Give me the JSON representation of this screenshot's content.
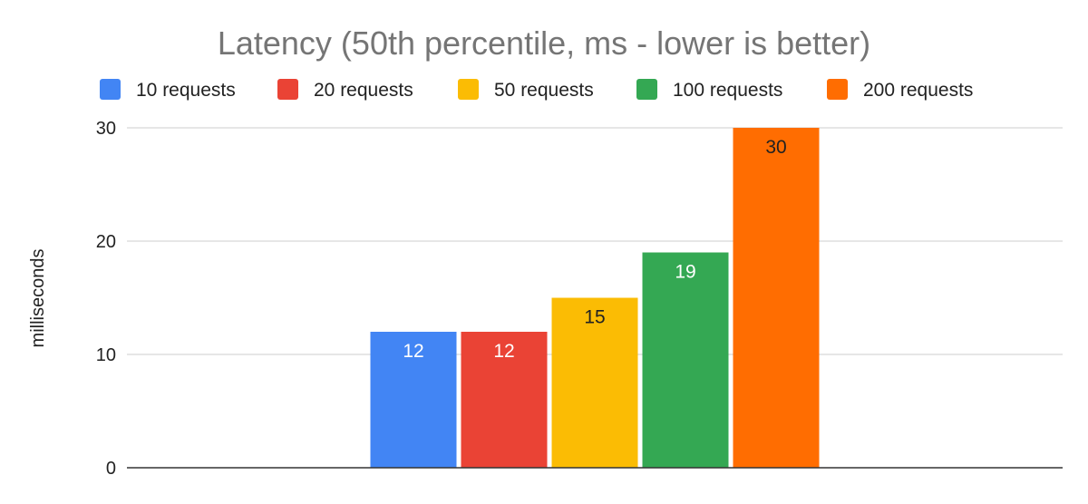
{
  "chart_data": {
    "type": "bar",
    "title": "Latency (50th percentile, ms - lower is better)",
    "ylabel": "milliseconds",
    "xlabel": "",
    "ylim": [
      0,
      30
    ],
    "yticks": [
      0,
      10,
      20,
      30
    ],
    "grid": true,
    "legend_position": "top",
    "series": [
      {
        "name": "10 requests",
        "values": [
          12
        ],
        "color": "#4285F4",
        "label_color": "#ffffff"
      },
      {
        "name": "20 requests",
        "values": [
          12
        ],
        "color": "#EA4335",
        "label_color": "#ffffff"
      },
      {
        "name": "50 requests",
        "values": [
          15
        ],
        "color": "#FBBC04",
        "label_color": "#222222"
      },
      {
        "name": "100 requests",
        "values": [
          19
        ],
        "color": "#34A853",
        "label_color": "#ffffff"
      },
      {
        "name": "200 requests",
        "values": [
          30
        ],
        "color": "#FF6D01",
        "label_color": "#222222"
      }
    ],
    "colors": {
      "gridline": "#cccccc",
      "axis": "#333333",
      "title": "#757575",
      "text": "#222222"
    }
  }
}
